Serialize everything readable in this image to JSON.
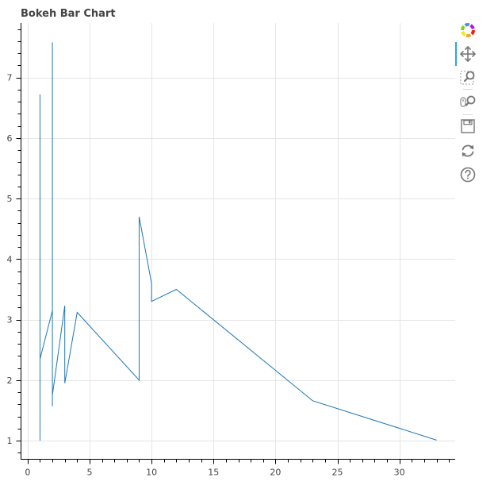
{
  "chart_data": {
    "type": "line",
    "title": "Bokeh Bar Chart",
    "xlabel": "",
    "ylabel": "",
    "xlim": [
      -0.5,
      34.5
    ],
    "ylim": [
      0.7,
      7.9
    ],
    "x_ticks": [
      0,
      5,
      10,
      15,
      20,
      25,
      30
    ],
    "y_ticks": [
      1,
      2,
      3,
      4,
      5,
      6,
      7
    ],
    "grid": true,
    "series": [
      {
        "color": "#1f77b4",
        "x": [
          1,
          1,
          1,
          2,
          2,
          2,
          2,
          2,
          3,
          3,
          4,
          9,
          9,
          10,
          10,
          12,
          23,
          33
        ],
        "y": [
          1.0,
          6.72,
          2.35,
          3.15,
          7.58,
          1.57,
          5.0,
          1.75,
          3.23,
          1.95,
          3.12,
          2.0,
          4.7,
          3.6,
          3.3,
          3.5,
          1.66,
          1.01
        ]
      }
    ]
  },
  "toolbar": {
    "tools": [
      {
        "icon": "bokeh-logo-icon"
      },
      {
        "icon": "pan-icon"
      },
      {
        "icon": "box-zoom-icon"
      },
      {
        "icon": "wheel-zoom-icon"
      },
      {
        "icon": "save-icon"
      },
      {
        "icon": "reset-icon"
      },
      {
        "icon": "help-icon"
      }
    ]
  }
}
